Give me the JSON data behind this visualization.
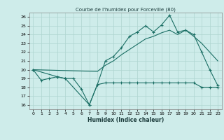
{
  "title": "Courbe de l'humidex pour Forceville (80)",
  "xlabel": "Humidex (Indice chaleur)",
  "background_color": "#ceecea",
  "grid_color": "#aed4d0",
  "line_color": "#1a6e64",
  "xlim": [
    -0.5,
    23.5
  ],
  "ylim": [
    15.5,
    26.5
  ],
  "yticks": [
    16,
    17,
    18,
    19,
    20,
    21,
    22,
    23,
    24,
    25,
    26
  ],
  "xticks": [
    0,
    1,
    2,
    3,
    4,
    5,
    6,
    7,
    8,
    9,
    10,
    11,
    12,
    13,
    14,
    15,
    16,
    17,
    18,
    19,
    20,
    21,
    22,
    23
  ],
  "line1_x": [
    0,
    1,
    2,
    3,
    4,
    5,
    6,
    7,
    8,
    9,
    10,
    11,
    12,
    13,
    14,
    15,
    16,
    17,
    18,
    19,
    20,
    21,
    22,
    23
  ],
  "line1_y": [
    20.0,
    18.8,
    19.0,
    19.2,
    19.0,
    19.0,
    17.8,
    16.0,
    18.3,
    18.5,
    18.5,
    18.5,
    18.5,
    18.5,
    18.5,
    18.5,
    18.5,
    18.5,
    18.5,
    18.5,
    18.5,
    18.0,
    18.0,
    18.0
  ],
  "line2_x": [
    0,
    3,
    4,
    7,
    8,
    9,
    10,
    11,
    12,
    13,
    14,
    15,
    16,
    17,
    18,
    19,
    20,
    21,
    22,
    23
  ],
  "line2_y": [
    20.0,
    19.2,
    19.0,
    16.0,
    18.3,
    21.0,
    21.5,
    22.5,
    23.8,
    24.3,
    25.0,
    24.3,
    25.1,
    26.2,
    24.3,
    24.5,
    24.0,
    22.0,
    20.0,
    18.2
  ],
  "line3_x": [
    0,
    8,
    9,
    10,
    11,
    12,
    13,
    14,
    15,
    16,
    17,
    18,
    19,
    20,
    21,
    22,
    23
  ],
  "line3_y": [
    20.0,
    19.8,
    20.5,
    21.0,
    21.7,
    22.3,
    22.9,
    23.5,
    23.8,
    24.2,
    24.5,
    24.0,
    24.5,
    23.8,
    23.0,
    22.0,
    21.0
  ]
}
